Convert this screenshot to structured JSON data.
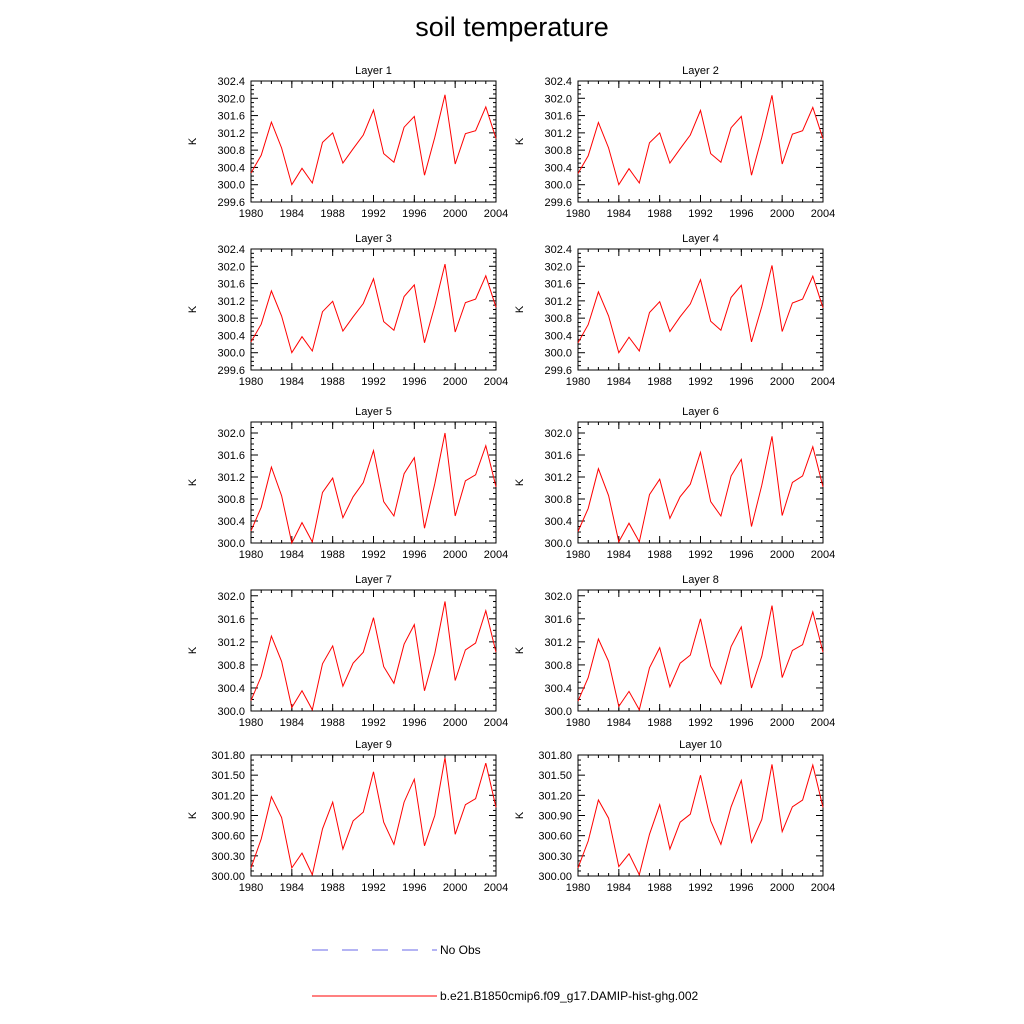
{
  "title": "soil temperature",
  "legend": {
    "items": [
      {
        "label": "No Obs",
        "color": "#6a6ae8",
        "dash": true
      },
      {
        "label": "b.e21.B1850cmip6.f09_g17.DAMIP-hist-ghg.002",
        "color": "#ff0000",
        "dash": false
      }
    ]
  },
  "colors": {
    "model_line": "#ff0000",
    "obs_line": "#6a6ae8"
  },
  "chart_data": [
    {
      "type": "line",
      "title": "Layer 1",
      "ylabel": "K",
      "xlim": [
        1980,
        2004
      ],
      "ylim": [
        299.6,
        302.4
      ],
      "xticks": [
        1980,
        1984,
        1988,
        1992,
        1996,
        2000,
        2004
      ],
      "yticks": [
        "299.6",
        "300.0",
        "300.4",
        "300.8",
        "301.2",
        "301.6",
        "302.0",
        "302.4"
      ],
      "x": [
        1980,
        1981,
        1982,
        1983,
        1984,
        1985,
        1986,
        1987,
        1988,
        1989,
        1990,
        1991,
        1992,
        1993,
        1994,
        1995,
        1996,
        1997,
        1998,
        1999,
        2000,
        2001,
        2002,
        2003,
        2004
      ],
      "series": [
        {
          "name": "b.e21.B1850cmip6.f09_g17.DAMIP-hist-ghg.002",
          "values": [
            300.27,
            300.68,
            301.45,
            300.85,
            300.0,
            300.38,
            300.04,
            300.98,
            301.2,
            300.5,
            300.83,
            301.15,
            301.73,
            300.72,
            300.52,
            301.33,
            301.58,
            300.22,
            301.1,
            302.08,
            300.48,
            301.18,
            301.25,
            301.8,
            301.07
          ]
        }
      ]
    },
    {
      "type": "line",
      "title": "Layer 2",
      "ylabel": "K",
      "xlim": [
        1980,
        2004
      ],
      "ylim": [
        299.6,
        302.4
      ],
      "xticks": [
        1980,
        1984,
        1988,
        1992,
        1996,
        2000,
        2004
      ],
      "yticks": [
        "299.6",
        "300.0",
        "300.4",
        "300.8",
        "301.2",
        "301.6",
        "302.0",
        "302.4"
      ],
      "x": [
        1980,
        1981,
        1982,
        1983,
        1984,
        1985,
        1986,
        1987,
        1988,
        1989,
        1990,
        1991,
        1992,
        1993,
        1994,
        1995,
        1996,
        1997,
        1998,
        1999,
        2000,
        2001,
        2002,
        2003,
        2004
      ],
      "series": [
        {
          "name": "b.e21.B1850cmip6.f09_g17.DAMIP-hist-ghg.002",
          "values": [
            300.26,
            300.67,
            301.44,
            300.85,
            300.0,
            300.37,
            300.04,
            300.97,
            301.2,
            300.5,
            300.83,
            301.15,
            301.72,
            300.72,
            300.52,
            301.32,
            301.58,
            300.22,
            301.1,
            302.07,
            300.48,
            301.17,
            301.25,
            301.79,
            301.06
          ]
        }
      ]
    },
    {
      "type": "line",
      "title": "Layer 3",
      "ylabel": "K",
      "xlim": [
        1980,
        2004
      ],
      "ylim": [
        299.6,
        302.4
      ],
      "xticks": [
        1980,
        1984,
        1988,
        1992,
        1996,
        2000,
        2004
      ],
      "yticks": [
        "299.6",
        "300.0",
        "300.4",
        "300.8",
        "301.2",
        "301.6",
        "302.0",
        "302.4"
      ],
      "x": [
        1980,
        1981,
        1982,
        1983,
        1984,
        1985,
        1986,
        1987,
        1988,
        1989,
        1990,
        1991,
        1992,
        1993,
        1994,
        1995,
        1996,
        1997,
        1998,
        1999,
        2000,
        2001,
        2002,
        2003,
        2004
      ],
      "series": [
        {
          "name": "b.e21.B1850cmip6.f09_g17.DAMIP-hist-ghg.002",
          "values": [
            300.25,
            300.66,
            301.43,
            300.85,
            300.0,
            300.37,
            300.04,
            300.95,
            301.19,
            300.5,
            300.83,
            301.14,
            301.71,
            300.72,
            300.52,
            301.3,
            301.57,
            300.23,
            301.09,
            302.05,
            300.48,
            301.16,
            301.24,
            301.78,
            301.05
          ]
        }
      ]
    },
    {
      "type": "line",
      "title": "Layer 4",
      "ylabel": "K",
      "xlim": [
        1980,
        2004
      ],
      "ylim": [
        299.6,
        302.4
      ],
      "xticks": [
        1980,
        1984,
        1988,
        1992,
        1996,
        2000,
        2004
      ],
      "yticks": [
        "299.6",
        "300.0",
        "300.4",
        "300.8",
        "301.2",
        "301.6",
        "302.0",
        "302.4"
      ],
      "x": [
        1980,
        1981,
        1982,
        1983,
        1984,
        1985,
        1986,
        1987,
        1988,
        1989,
        1990,
        1991,
        1992,
        1993,
        1994,
        1995,
        1996,
        1997,
        1998,
        1999,
        2000,
        2001,
        2002,
        2003,
        2004
      ],
      "series": [
        {
          "name": "b.e21.B1850cmip6.f09_g17.DAMIP-hist-ghg.002",
          "values": [
            300.23,
            300.65,
            301.41,
            300.85,
            300.0,
            300.36,
            300.04,
            300.93,
            301.18,
            300.49,
            300.83,
            301.13,
            301.69,
            300.73,
            300.52,
            301.28,
            301.56,
            300.25,
            301.07,
            302.02,
            300.49,
            301.15,
            301.24,
            301.77,
            301.04
          ]
        }
      ]
    },
    {
      "type": "line",
      "title": "Layer 5",
      "ylabel": "K",
      "xlim": [
        1980,
        2004
      ],
      "ylim": [
        300.0,
        302.2
      ],
      "xticks": [
        1980,
        1984,
        1988,
        1992,
        1996,
        2000,
        2004
      ],
      "yticks": [
        "300.0",
        "300.4",
        "300.8",
        "301.2",
        "301.6",
        "302.0"
      ],
      "x": [
        1980,
        1981,
        1982,
        1983,
        1984,
        1985,
        1986,
        1987,
        1988,
        1989,
        1990,
        1991,
        1992,
        1993,
        1994,
        1995,
        1996,
        1997,
        1998,
        1999,
        2000,
        2001,
        2002,
        2003,
        2004
      ],
      "series": [
        {
          "name": "b.e21.B1850cmip6.f09_g17.DAMIP-hist-ghg.002",
          "values": [
            300.22,
            300.65,
            301.38,
            300.86,
            300.0,
            300.37,
            300.02,
            300.92,
            301.18,
            300.46,
            300.84,
            301.1,
            301.68,
            300.75,
            300.49,
            301.26,
            301.55,
            300.27,
            301.08,
            302.0,
            300.49,
            301.13,
            301.24,
            301.77,
            301.02
          ]
        }
      ]
    },
    {
      "type": "line",
      "title": "Layer 6",
      "ylabel": "K",
      "xlim": [
        1980,
        2004
      ],
      "ylim": [
        300.0,
        302.2
      ],
      "xticks": [
        1980,
        1984,
        1988,
        1992,
        1996,
        2000,
        2004
      ],
      "yticks": [
        "300.0",
        "300.4",
        "300.8",
        "301.2",
        "301.6",
        "302.0"
      ],
      "x": [
        1980,
        1981,
        1982,
        1983,
        1984,
        1985,
        1986,
        1987,
        1988,
        1989,
        1990,
        1991,
        1992,
        1993,
        1994,
        1995,
        1996,
        1997,
        1998,
        1999,
        2000,
        2001,
        2002,
        2003,
        2004
      ],
      "series": [
        {
          "name": "b.e21.B1850cmip6.f09_g17.DAMIP-hist-ghg.002",
          "values": [
            300.21,
            300.63,
            301.35,
            300.86,
            300.02,
            300.36,
            300.02,
            300.88,
            301.16,
            300.45,
            300.84,
            301.07,
            301.65,
            300.75,
            300.49,
            301.22,
            301.52,
            300.3,
            301.05,
            301.94,
            300.5,
            301.1,
            301.22,
            301.75,
            301.02
          ]
        }
      ]
    },
    {
      "type": "line",
      "title": "Layer 7",
      "ylabel": "K",
      "xlim": [
        1980,
        2004
      ],
      "ylim": [
        300.0,
        302.1
      ],
      "xticks": [
        1980,
        1984,
        1988,
        1992,
        1996,
        2000,
        2004
      ],
      "yticks": [
        "300.0",
        "300.4",
        "300.8",
        "301.2",
        "301.6",
        "302.0"
      ],
      "x": [
        1980,
        1981,
        1982,
        1983,
        1984,
        1985,
        1986,
        1987,
        1988,
        1989,
        1990,
        1991,
        1992,
        1993,
        1994,
        1995,
        1996,
        1997,
        1998,
        1999,
        2000,
        2001,
        2002,
        2003,
        2004
      ],
      "series": [
        {
          "name": "b.e21.B1850cmip6.f09_g17.DAMIP-hist-ghg.002",
          "values": [
            300.18,
            300.6,
            301.3,
            300.86,
            300.06,
            300.35,
            300.02,
            300.82,
            301.13,
            300.43,
            300.83,
            301.02,
            301.62,
            300.77,
            300.48,
            301.16,
            301.5,
            300.35,
            301.0,
            301.9,
            300.53,
            301.06,
            301.18,
            301.74,
            301.02
          ]
        }
      ]
    },
    {
      "type": "line",
      "title": "Layer 8",
      "ylabel": "K",
      "xlim": [
        1980,
        2004
      ],
      "ylim": [
        300.0,
        302.1
      ],
      "xticks": [
        1980,
        1984,
        1988,
        1992,
        1996,
        2000,
        2004
      ],
      "yticks": [
        "300.0",
        "300.4",
        "300.8",
        "301.2",
        "301.6",
        "302.0"
      ],
      "x": [
        1980,
        1981,
        1982,
        1983,
        1984,
        1985,
        1986,
        1987,
        1988,
        1989,
        1990,
        1991,
        1992,
        1993,
        1994,
        1995,
        1996,
        1997,
        1998,
        1999,
        2000,
        2001,
        2002,
        2003,
        2004
      ],
      "series": [
        {
          "name": "b.e21.B1850cmip6.f09_g17.DAMIP-hist-ghg.002",
          "values": [
            300.17,
            300.58,
            301.25,
            300.86,
            300.08,
            300.34,
            300.02,
            300.75,
            301.1,
            300.42,
            300.83,
            300.97,
            301.6,
            300.78,
            300.47,
            301.12,
            301.46,
            300.4,
            300.95,
            301.83,
            300.58,
            301.05,
            301.15,
            301.72,
            301.02
          ]
        }
      ]
    },
    {
      "type": "line",
      "title": "Layer 9",
      "ylabel": "K",
      "xlim": [
        1980,
        2004
      ],
      "ylim": [
        300.0,
        301.8
      ],
      "xticks": [
        1980,
        1984,
        1988,
        1992,
        1996,
        2000,
        2004
      ],
      "yticks": [
        "300.00",
        "300.30",
        "300.60",
        "300.90",
        "301.20",
        "301.50",
        "301.80"
      ],
      "x": [
        1980,
        1981,
        1982,
        1983,
        1984,
        1985,
        1986,
        1987,
        1988,
        1989,
        1990,
        1991,
        1992,
        1993,
        1994,
        1995,
        1996,
        1997,
        1998,
        1999,
        2000,
        2001,
        2002,
        2003,
        2004
      ],
      "series": [
        {
          "name": "b.e21.B1850cmip6.f09_g17.DAMIP-hist-ghg.002",
          "values": [
            300.12,
            300.55,
            301.18,
            300.87,
            300.12,
            300.34,
            300.02,
            300.7,
            301.1,
            300.4,
            300.82,
            300.95,
            301.55,
            300.8,
            300.47,
            301.1,
            301.44,
            300.45,
            300.9,
            301.76,
            300.62,
            301.06,
            301.15,
            301.68,
            301.02
          ]
        }
      ]
    },
    {
      "type": "line",
      "title": "Layer 10",
      "ylabel": "K",
      "xlim": [
        1980,
        2004
      ],
      "ylim": [
        300.0,
        301.8
      ],
      "xticks": [
        1980,
        1984,
        1988,
        1992,
        1996,
        2000,
        2004
      ],
      "yticks": [
        "300.00",
        "300.30",
        "300.60",
        "300.90",
        "301.20",
        "301.50",
        "301.80"
      ],
      "x": [
        1980,
        1981,
        1982,
        1983,
        1984,
        1985,
        1986,
        1987,
        1988,
        1989,
        1990,
        1991,
        1992,
        1993,
        1994,
        1995,
        1996,
        1997,
        1998,
        1999,
        2000,
        2001,
        2002,
        2003,
        2004
      ],
      "series": [
        {
          "name": "b.e21.B1850cmip6.f09_g17.DAMIP-hist-ghg.002",
          "values": [
            300.12,
            300.52,
            301.13,
            300.86,
            300.14,
            300.33,
            300.02,
            300.62,
            301.06,
            300.4,
            300.8,
            300.92,
            301.5,
            300.82,
            300.47,
            301.03,
            301.42,
            300.5,
            300.84,
            301.66,
            300.66,
            301.03,
            301.13,
            301.65,
            301.02
          ]
        }
      ]
    }
  ]
}
